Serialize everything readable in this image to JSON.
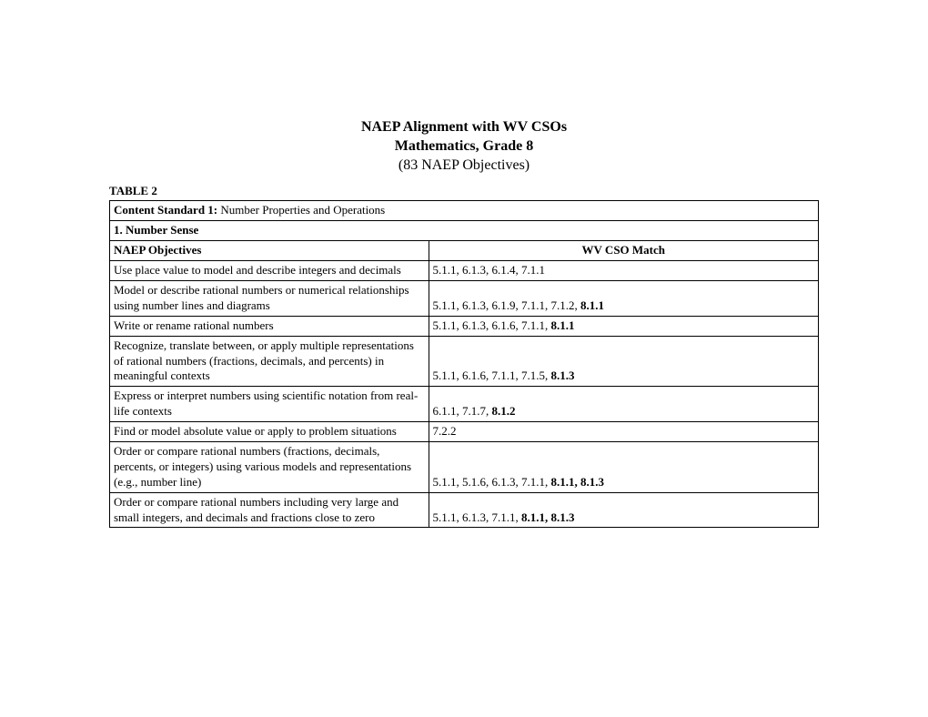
{
  "header": {
    "title1": "NAEP Alignment with WV CSOs",
    "title2": "Mathematics, Grade 8",
    "subtitle": "(83 NAEP Objectives)"
  },
  "tableLabel": "TABLE 2",
  "contentStandard": {
    "prefix": "Content Standard 1:",
    "text": "  Number Properties and Operations"
  },
  "section": "1.  Number Sense",
  "columnHeaders": {
    "left": "NAEP Objectives",
    "right": "WV CSO Match"
  },
  "rows": [
    {
      "objective": "Use place value to model and describe integers and decimals",
      "codes": "5.1.1,   6.1.3,   6.1.4,  7.1.1",
      "boldCodes": ""
    },
    {
      "objective": "Model or describe rational numbers or numerical relationships using number lines and diagrams",
      "codes": "5.1.1,   6.1.3,   6.1.9,   7.1.1,   7.1.2,    ",
      "boldCodes": "8.1.1"
    },
    {
      "objective": "Write or rename rational numbers",
      "codes": "5.1.1,   6.1.3,    6.1.6,   7.1.1,   ",
      "boldCodes": "8.1.1"
    },
    {
      "objective": "Recognize, translate between, or apply multiple representations of rational numbers (fractions, decimals, and percents) in meaningful contexts",
      "codes": "5.1.1,   6.1.6,  7.1.1,   7.1.5,    ",
      "boldCodes": "8.1.3"
    },
    {
      "objective": "Express or interpret numbers using scientific notation from real-life contexts",
      "codes": "6.1.1,  7.1.7,  ",
      "boldCodes": "8.1.2"
    },
    {
      "objective": "Find or model absolute value or apply to problem situations",
      "codes": "7.2.2",
      "boldCodes": ""
    },
    {
      "objective": "Order or compare rational numbers (fractions, decimals, percents, or integers) using various models and representations (e.g., number line)",
      "codes": "5.1.1, 5.1.6, 6.1.3, 7.1.1,  ",
      "boldCodes": "8.1.1,   8.1.3"
    },
    {
      "objective": "Order or compare rational numbers including very large and small integers, and decimals and fractions close to zero",
      "codes": "5.1.1,   6.1.3,   7.1.1,   ",
      "boldCodes": "8.1.1,   8.1.3"
    }
  ]
}
